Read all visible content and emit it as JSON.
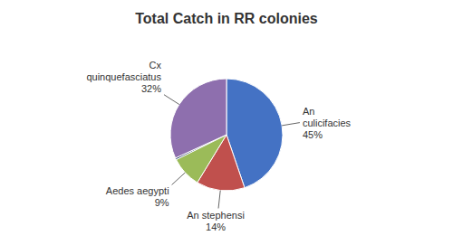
{
  "chart_data": {
    "type": "pie",
    "title": "Total Catch in RR colonies",
    "categories": [
      "An\nculicifacies",
      "An stephensi",
      "Aedes aegypti",
      null,
      "Cx\nquinquefasciatus"
    ],
    "values": [
      45,
      14,
      9,
      0.5,
      32
    ],
    "value_labels": [
      "45%",
      "14%",
      "9%",
      null,
      "32%"
    ],
    "colors": [
      "#4472C4",
      "#C0504D",
      "#9BBB59",
      "#1F3864",
      "#8E6FAE"
    ],
    "data_labels": true
  }
}
